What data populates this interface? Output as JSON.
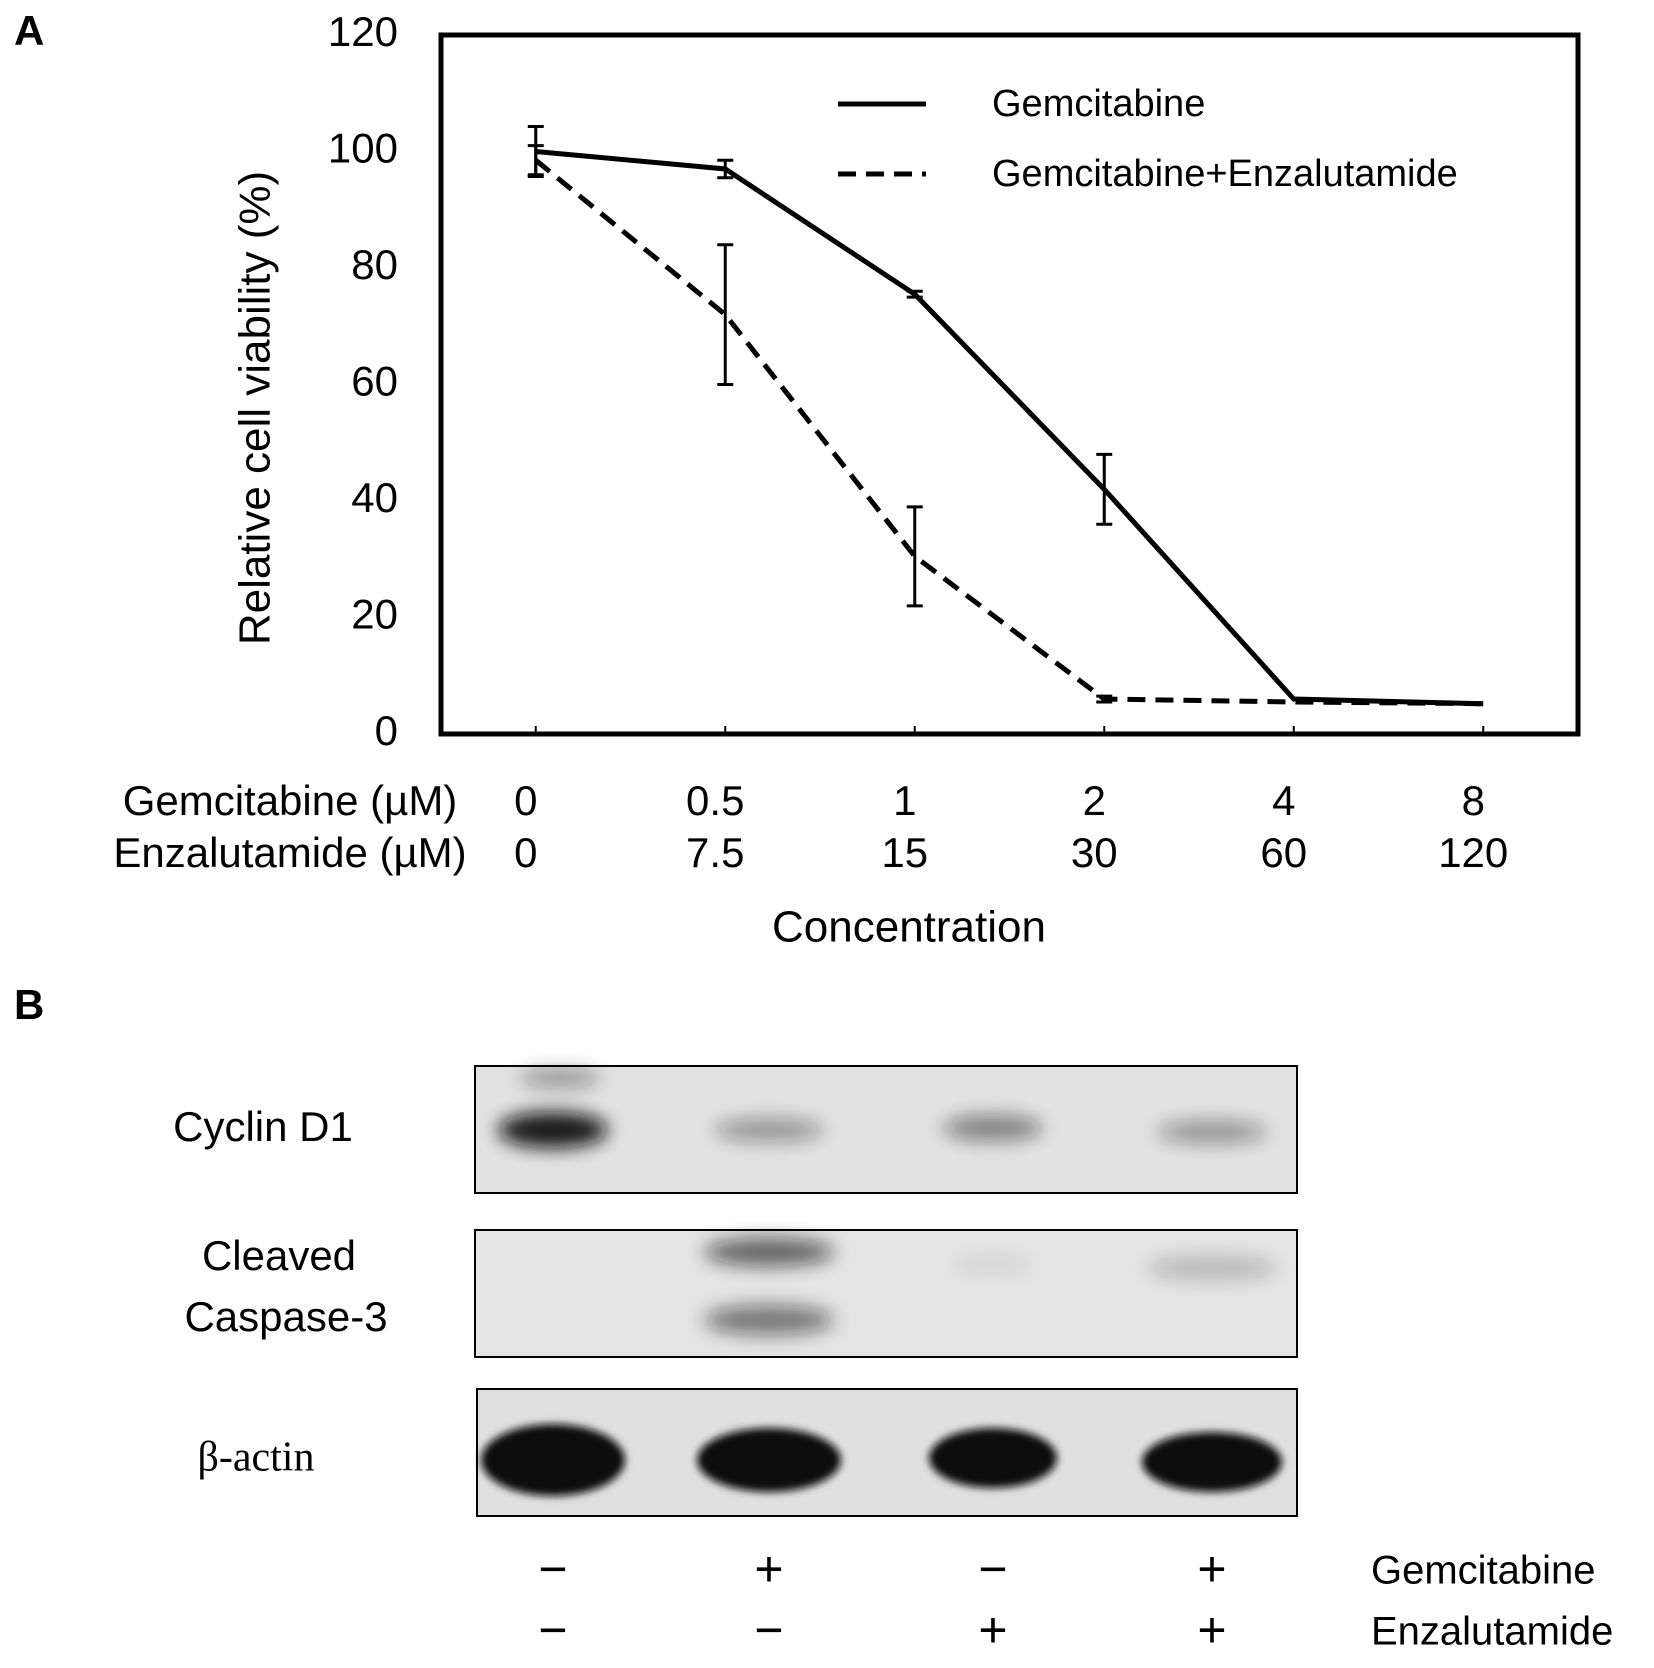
{
  "chart_data": {
    "type": "line",
    "panel_label": "A",
    "y_label": "Relative cell viability (%)",
    "x_label": "Concentration",
    "categories": [
      "0",
      "0.5",
      "1",
      "2",
      "4",
      "8"
    ],
    "x_rows": [
      {
        "label": "Gemcitabine (µM)",
        "values": [
          "0",
          "0.5",
          "1",
          "2",
          "4",
          "8"
        ]
      },
      {
        "label": "Enzalutamide (µM)",
        "values": [
          "0",
          "7.5",
          "15",
          "30",
          "60",
          "120"
        ]
      }
    ],
    "series": [
      {
        "name": "Gemcitabine",
        "color": "#000000",
        "dash": "solid",
        "values": [
          100,
          97,
          75.5,
          42,
          6,
          5.2
        ],
        "errors": [
          4.3,
          1.5,
          0.5,
          6,
          null,
          null
        ]
      },
      {
        "name": "Gemcitabine+Enzalutamide",
        "color": "#000000",
        "dash": "dashed",
        "values": [
          98.5,
          72,
          30.5,
          6,
          5.5,
          5.2
        ],
        "errors": [
          2.5,
          12,
          8.5,
          0.5,
          null,
          null
        ]
      }
    ],
    "ylim": [
      0,
      120
    ],
    "yticks": [
      0,
      20,
      40,
      60,
      80,
      100,
      120
    ],
    "grid": false,
    "legend": "upper right"
  },
  "blot": {
    "panel_label": "B",
    "rows": [
      {
        "label": [
          "Cyclin D1"
        ]
      },
      {
        "label": [
          "Cleaved",
          "Caspase-3"
        ]
      },
      {
        "label": [
          "β-actin"
        ]
      }
    ],
    "treatments": [
      {
        "name": "Gemcitabine",
        "signs": [
          "−",
          "+",
          "−",
          "+"
        ]
      },
      {
        "name": "Enzalutamide",
        "signs": [
          "−",
          "−",
          "+",
          "+"
        ]
      }
    ]
  }
}
